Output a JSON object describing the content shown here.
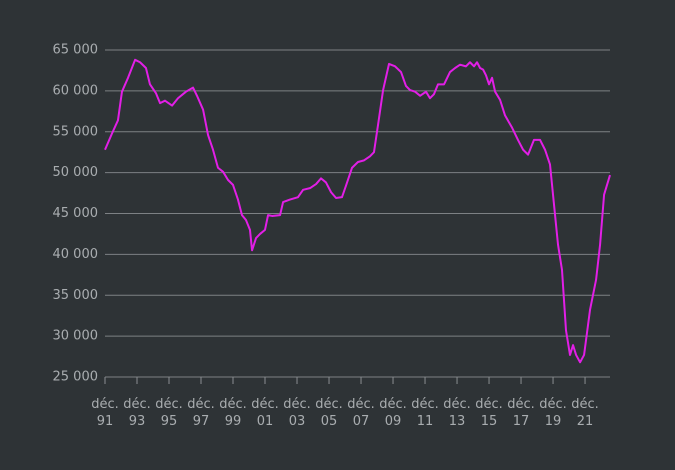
{
  "chart_data": {
    "type": "line",
    "color": "#e21fe6",
    "grid": true,
    "x": [
      1991.92,
      1992.36,
      1992.73,
      1992.98,
      1993.36,
      1993.8,
      1994.11,
      1994.48,
      1994.73,
      1995.11,
      1995.36,
      1995.67,
      1996.11,
      1996.48,
      1996.98,
      1997.42,
      1997.67,
      1998.05,
      1998.36,
      1998.67,
      1998.98,
      1999.3,
      1999.61,
      1999.92,
      2000.23,
      2000.48,
      2000.73,
      2000.98,
      2001.11,
      2001.36,
      2001.61,
      2001.92,
      2002.11,
      2002.36,
      2002.86,
      2003.05,
      2003.48,
      2003.98,
      2004.3,
      2004.73,
      2005.11,
      2005.42,
      2005.73,
      2006.05,
      2006.36,
      2006.73,
      2006.98,
      2007.36,
      2007.73,
      2008.11,
      2008.48,
      2008.73,
      2008.98,
      2009.3,
      2009.67,
      2010.05,
      2010.42,
      2010.73,
      2010.98,
      2011.3,
      2011.61,
      2011.98,
      2012.23,
      2012.48,
      2012.73,
      2013.11,
      2013.48,
      2013.8,
      2014.11,
      2014.48,
      2014.73,
      2014.98,
      2015.17,
      2015.36,
      2015.55,
      2015.73,
      2015.92,
      2016.11,
      2016.3,
      2016.61,
      2016.92,
      2017.36,
      2017.73,
      2018.05,
      2018.36,
      2018.73,
      2019.11,
      2019.42,
      2019.73,
      2019.98,
      2020.23,
      2020.48,
      2020.73,
      2020.98,
      2021.17,
      2021.36,
      2021.61,
      2021.86,
      2022.23,
      2022.61,
      2022.86,
      2023.11,
      2023.48
    ],
    "values": [
      52800,
      54800,
      56400,
      59900,
      61600,
      63800,
      63500,
      62800,
      60800,
      59700,
      58500,
      58800,
      58200,
      59100,
      59900,
      60400,
      59400,
      57700,
      54600,
      52800,
      50600,
      50100,
      49100,
      48500,
      46700,
      44800,
      44200,
      43000,
      40500,
      42000,
      42500,
      43000,
      44800,
      44700,
      44800,
      46400,
      46700,
      47000,
      47900,
      48100,
      48600,
      49300,
      48800,
      47600,
      46900,
      47000,
      48400,
      50600,
      51300,
      51500,
      52000,
      52500,
      55800,
      60100,
      63300,
      63000,
      62300,
      60600,
      60100,
      59900,
      59400,
      59900,
      59100,
      59600,
      60800,
      60800,
      62300,
      62800,
      63200,
      63000,
      63500,
      63000,
      63500,
      62800,
      62600,
      61900,
      60800,
      61600,
      59900,
      58900,
      57000,
      55500,
      54000,
      52800,
      52200,
      54000,
      54000,
      52800,
      51000,
      46100,
      41200,
      38100,
      30700,
      27700,
      28900,
      27700,
      26800,
      27700,
      33200,
      36900,
      41200,
      47300,
      49700
    ],
    "xlim": [
      1991.92,
      2023.48
    ],
    "xticks": [
      {
        "value": 1991.92,
        "label": "déc. 91"
      },
      {
        "value": 1993.92,
        "label": "déc. 93"
      },
      {
        "value": 1995.92,
        "label": "déc. 95"
      },
      {
        "value": 1997.92,
        "label": "déc. 97"
      },
      {
        "value": 1999.92,
        "label": "déc. 99"
      },
      {
        "value": 2001.92,
        "label": "déc. 01"
      },
      {
        "value": 2003.92,
        "label": "déc. 03"
      },
      {
        "value": 2005.92,
        "label": "déc. 05"
      },
      {
        "value": 2007.92,
        "label": "déc. 07"
      },
      {
        "value": 2009.92,
        "label": "déc. 09"
      },
      {
        "value": 2011.92,
        "label": "déc. 11"
      },
      {
        "value": 2013.92,
        "label": "déc. 13"
      },
      {
        "value": 2015.92,
        "label": "déc. 15"
      },
      {
        "value": 2017.92,
        "label": "déc. 17"
      },
      {
        "value": 2019.92,
        "label": "déc. 19"
      },
      {
        "value": 2021.92,
        "label": "déc. 21"
      }
    ],
    "ylim": [
      25000,
      65000
    ],
    "yticks": [
      {
        "value": 25000,
        "label": "25 000"
      },
      {
        "value": 30000,
        "label": "30 000"
      },
      {
        "value": 35000,
        "label": "35 000"
      },
      {
        "value": 40000,
        "label": "40 000"
      },
      {
        "value": 45000,
        "label": "45 000"
      },
      {
        "value": 50000,
        "label": "50 000"
      },
      {
        "value": 55000,
        "label": "55 000"
      },
      {
        "value": 60000,
        "label": "60 000"
      },
      {
        "value": 65000,
        "label": "65 000"
      }
    ]
  }
}
